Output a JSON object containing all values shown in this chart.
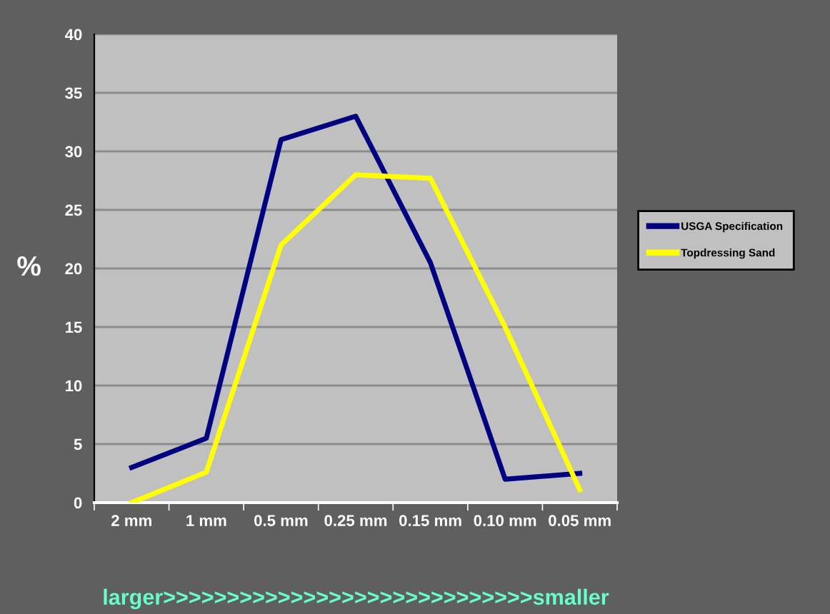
{
  "chart_data": {
    "type": "line",
    "categories": [
      "2 mm",
      "1 mm",
      "0.5 mm",
      "0.25 mm",
      "0.15 mm",
      "0.10 mm",
      "0.05 mm"
    ],
    "series": [
      {
        "name": "USGA Specification",
        "color": "#000080",
        "values": [
          3,
          5.5,
          31,
          33,
          20.5,
          2,
          2.5
        ]
      },
      {
        "name": "Topdressing Sand",
        "color": "#ffff00",
        "values": [
          0,
          2.6,
          22,
          28,
          27.7,
          15,
          1.1
        ]
      }
    ],
    "ylabel": "%",
    "xlabel": "larger>>>>>>>>>>>>>>>>>>>>>>>>>>>>>smaller",
    "ylim": [
      0,
      40
    ],
    "yticks": [
      0,
      5,
      10,
      15,
      20,
      25,
      30,
      35,
      40
    ],
    "grid": "y",
    "legend": "right",
    "marker": "none",
    "line_style": "solid"
  }
}
